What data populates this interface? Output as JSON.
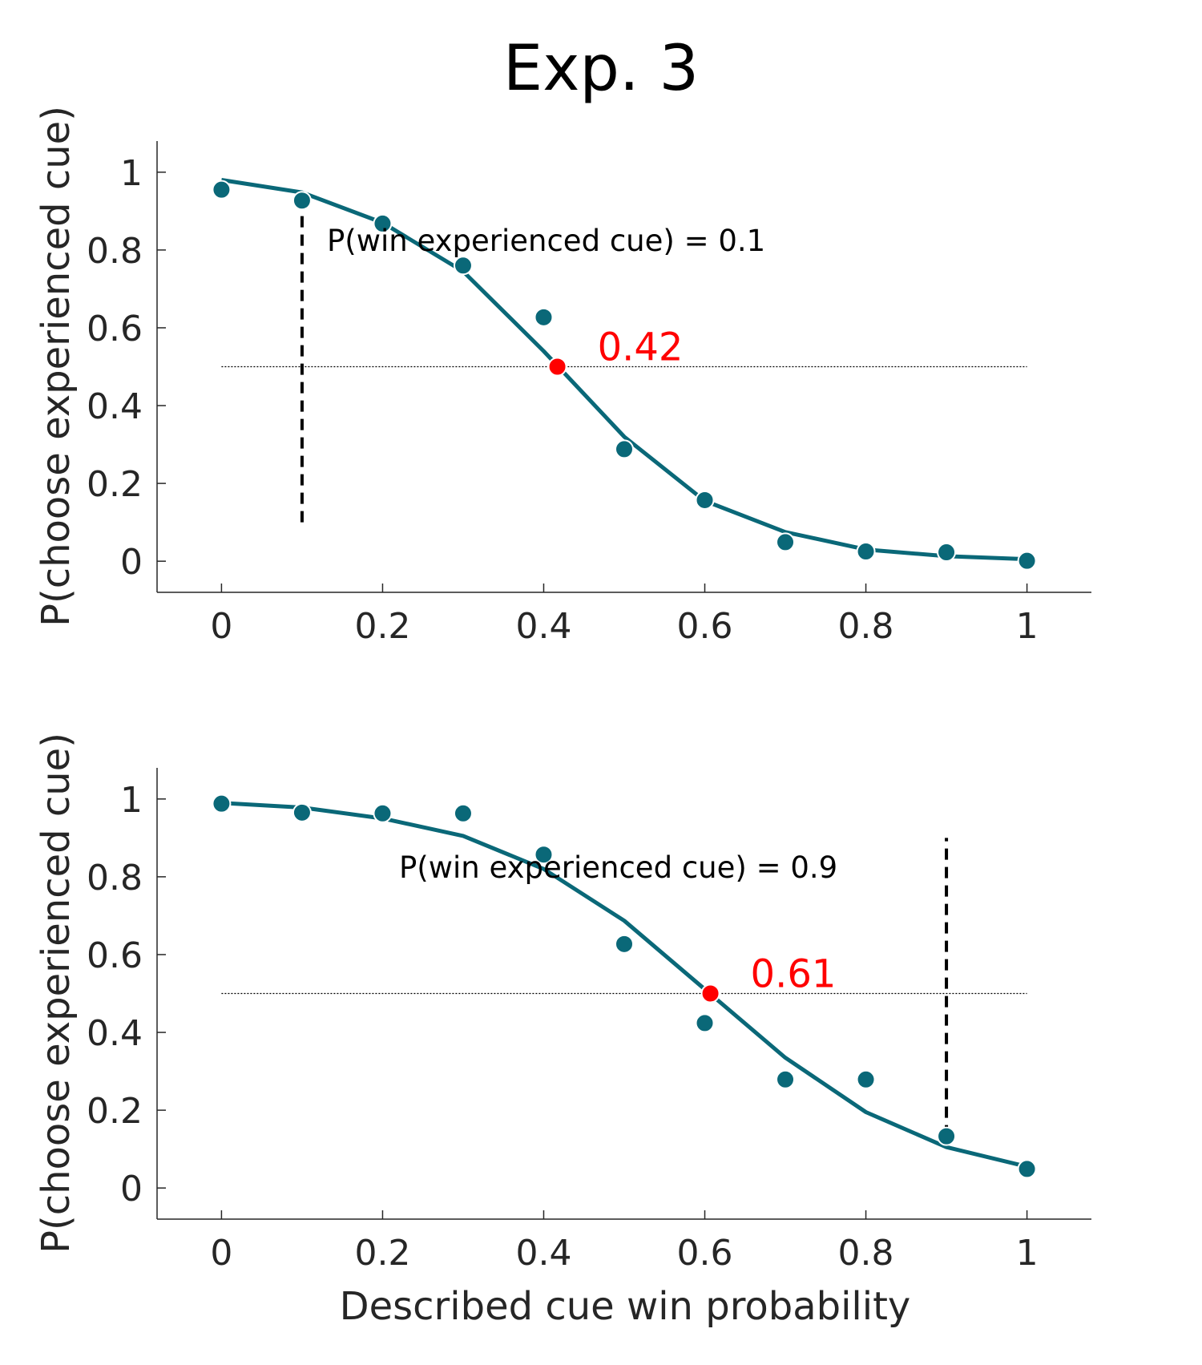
{
  "figure": {
    "title": "Exp. 3",
    "xlabel": "Described cue win probability",
    "ylabel": "P(choose experienced cue)"
  },
  "colors": {
    "series": "#0a6878",
    "indifference_point": "#ff0000",
    "reference_line": "#000000",
    "axis": "#262626"
  },
  "chart_data": [
    {
      "type": "scatter",
      "panel": "top",
      "xlabel": "",
      "ylabel": "P(choose experienced cue)",
      "xlim": [
        -0.08,
        1.08
      ],
      "ylim": [
        -0.08,
        1.08
      ],
      "x_ticks": [
        0,
        0.2,
        0.4,
        0.6,
        0.8,
        1
      ],
      "x_tick_labels": [
        "0",
        "0.2",
        "0.4",
        "0.6",
        "0.8",
        "1"
      ],
      "y_ticks": [
        0,
        0.2,
        0.4,
        0.6,
        0.8,
        1
      ],
      "y_tick_labels": [
        "0",
        "0.2",
        "0.4",
        "0.6",
        "0.8",
        "1"
      ],
      "grid": false,
      "series": [
        {
          "kind": "points",
          "x": [
            0,
            0.1,
            0.2,
            0.3,
            0.4,
            0.5,
            0.6,
            0.7,
            0.8,
            0.9,
            1.0
          ],
          "y": [
            0.955,
            0.927,
            0.868,
            0.76,
            0.627,
            0.288,
            0.157,
            0.049,
            0.025,
            0.023,
            0.001
          ]
        },
        {
          "kind": "fit_line",
          "x": [
            0,
            0.1,
            0.2,
            0.3,
            0.4,
            0.5,
            0.6,
            0.7,
            0.8,
            0.9,
            1.0
          ],
          "y": [
            0.98,
            0.948,
            0.87,
            0.745,
            0.54,
            0.32,
            0.155,
            0.075,
            0.03,
            0.013,
            0.005
          ]
        }
      ],
      "reference_line_y": 0.5,
      "experienced_cue": {
        "x": 0.1,
        "y_range": [
          0.1,
          0.93
        ],
        "label": "P(win experienced cue) = 0.1"
      },
      "indifference_point": {
        "x": 0.417,
        "y": 0.5,
        "label": "0.42"
      }
    },
    {
      "type": "scatter",
      "panel": "bottom",
      "xlabel": "Described cue win probability",
      "ylabel": "P(choose experienced cue)",
      "xlim": [
        -0.08,
        1.08
      ],
      "ylim": [
        -0.08,
        1.08
      ],
      "x_ticks": [
        0,
        0.2,
        0.4,
        0.6,
        0.8,
        1
      ],
      "x_tick_labels": [
        "0",
        "0.2",
        "0.4",
        "0.6",
        "0.8",
        "1"
      ],
      "y_ticks": [
        0,
        0.2,
        0.4,
        0.6,
        0.8,
        1
      ],
      "y_tick_labels": [
        "0",
        "0.2",
        "0.4",
        "0.6",
        "0.8",
        "1"
      ],
      "grid": false,
      "series": [
        {
          "kind": "points",
          "x": [
            0,
            0.1,
            0.2,
            0.3,
            0.4,
            0.5,
            0.6,
            0.7,
            0.8,
            0.9,
            1.0
          ],
          "y": [
            0.988,
            0.965,
            0.963,
            0.963,
            0.857,
            0.627,
            0.424,
            0.279,
            0.279,
            0.133,
            0.049
          ]
        },
        {
          "kind": "fit_line",
          "x": [
            0,
            0.1,
            0.2,
            0.3,
            0.4,
            0.5,
            0.6,
            0.7,
            0.8,
            0.9,
            1.0
          ],
          "y": [
            0.99,
            0.978,
            0.95,
            0.905,
            0.82,
            0.687,
            0.511,
            0.335,
            0.195,
            0.105,
            0.055
          ]
        }
      ],
      "reference_line_y": 0.5,
      "experienced_cue": {
        "x": 0.9,
        "y_range": [
          0.133,
          0.9
        ],
        "label": "P(win experienced cue) = 0.9"
      },
      "indifference_point": {
        "x": 0.607,
        "y": 0.5,
        "label": "0.61"
      }
    }
  ]
}
